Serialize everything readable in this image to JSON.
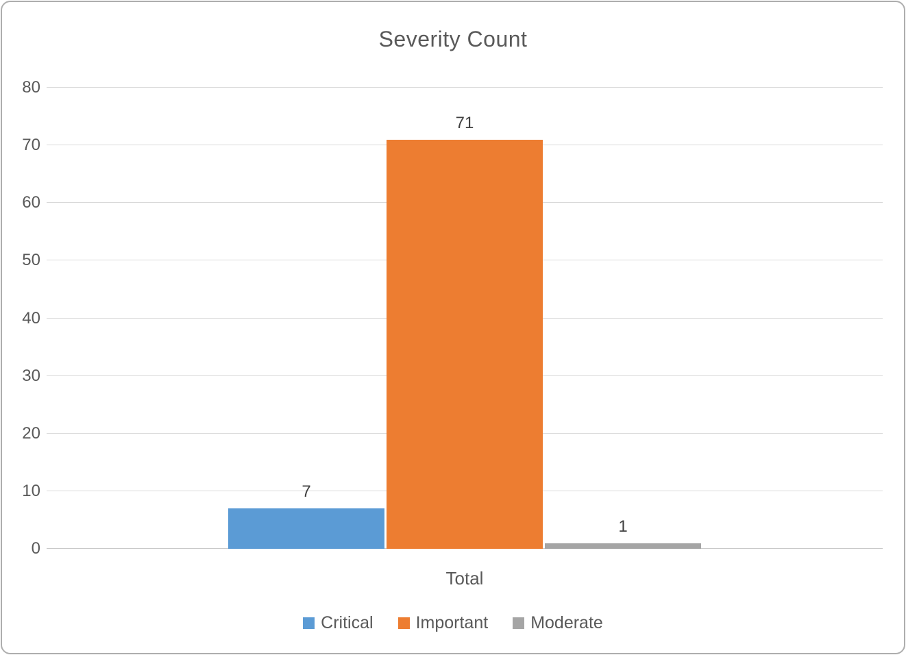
{
  "chart_data": {
    "type": "bar",
    "title": "Severity Count",
    "categories": [
      "Total"
    ],
    "series": [
      {
        "name": "Critical",
        "values": [
          7
        ],
        "color": "#5B9BD5"
      },
      {
        "name": "Important",
        "values": [
          71
        ],
        "color": "#ED7D31"
      },
      {
        "name": "Moderate",
        "values": [
          1
        ],
        "color": "#A5A5A5"
      }
    ],
    "xlabel": "",
    "ylabel": "",
    "ylim": [
      0,
      80
    ],
    "ytick_step": 10,
    "grid": true,
    "legend_position": "bottom",
    "colors": {
      "title_text": "#595959",
      "axis_text": "#595959",
      "data_label_text": "#404040",
      "gridline": "#D9D9D9",
      "frame_border": "#AEAEAE"
    }
  }
}
